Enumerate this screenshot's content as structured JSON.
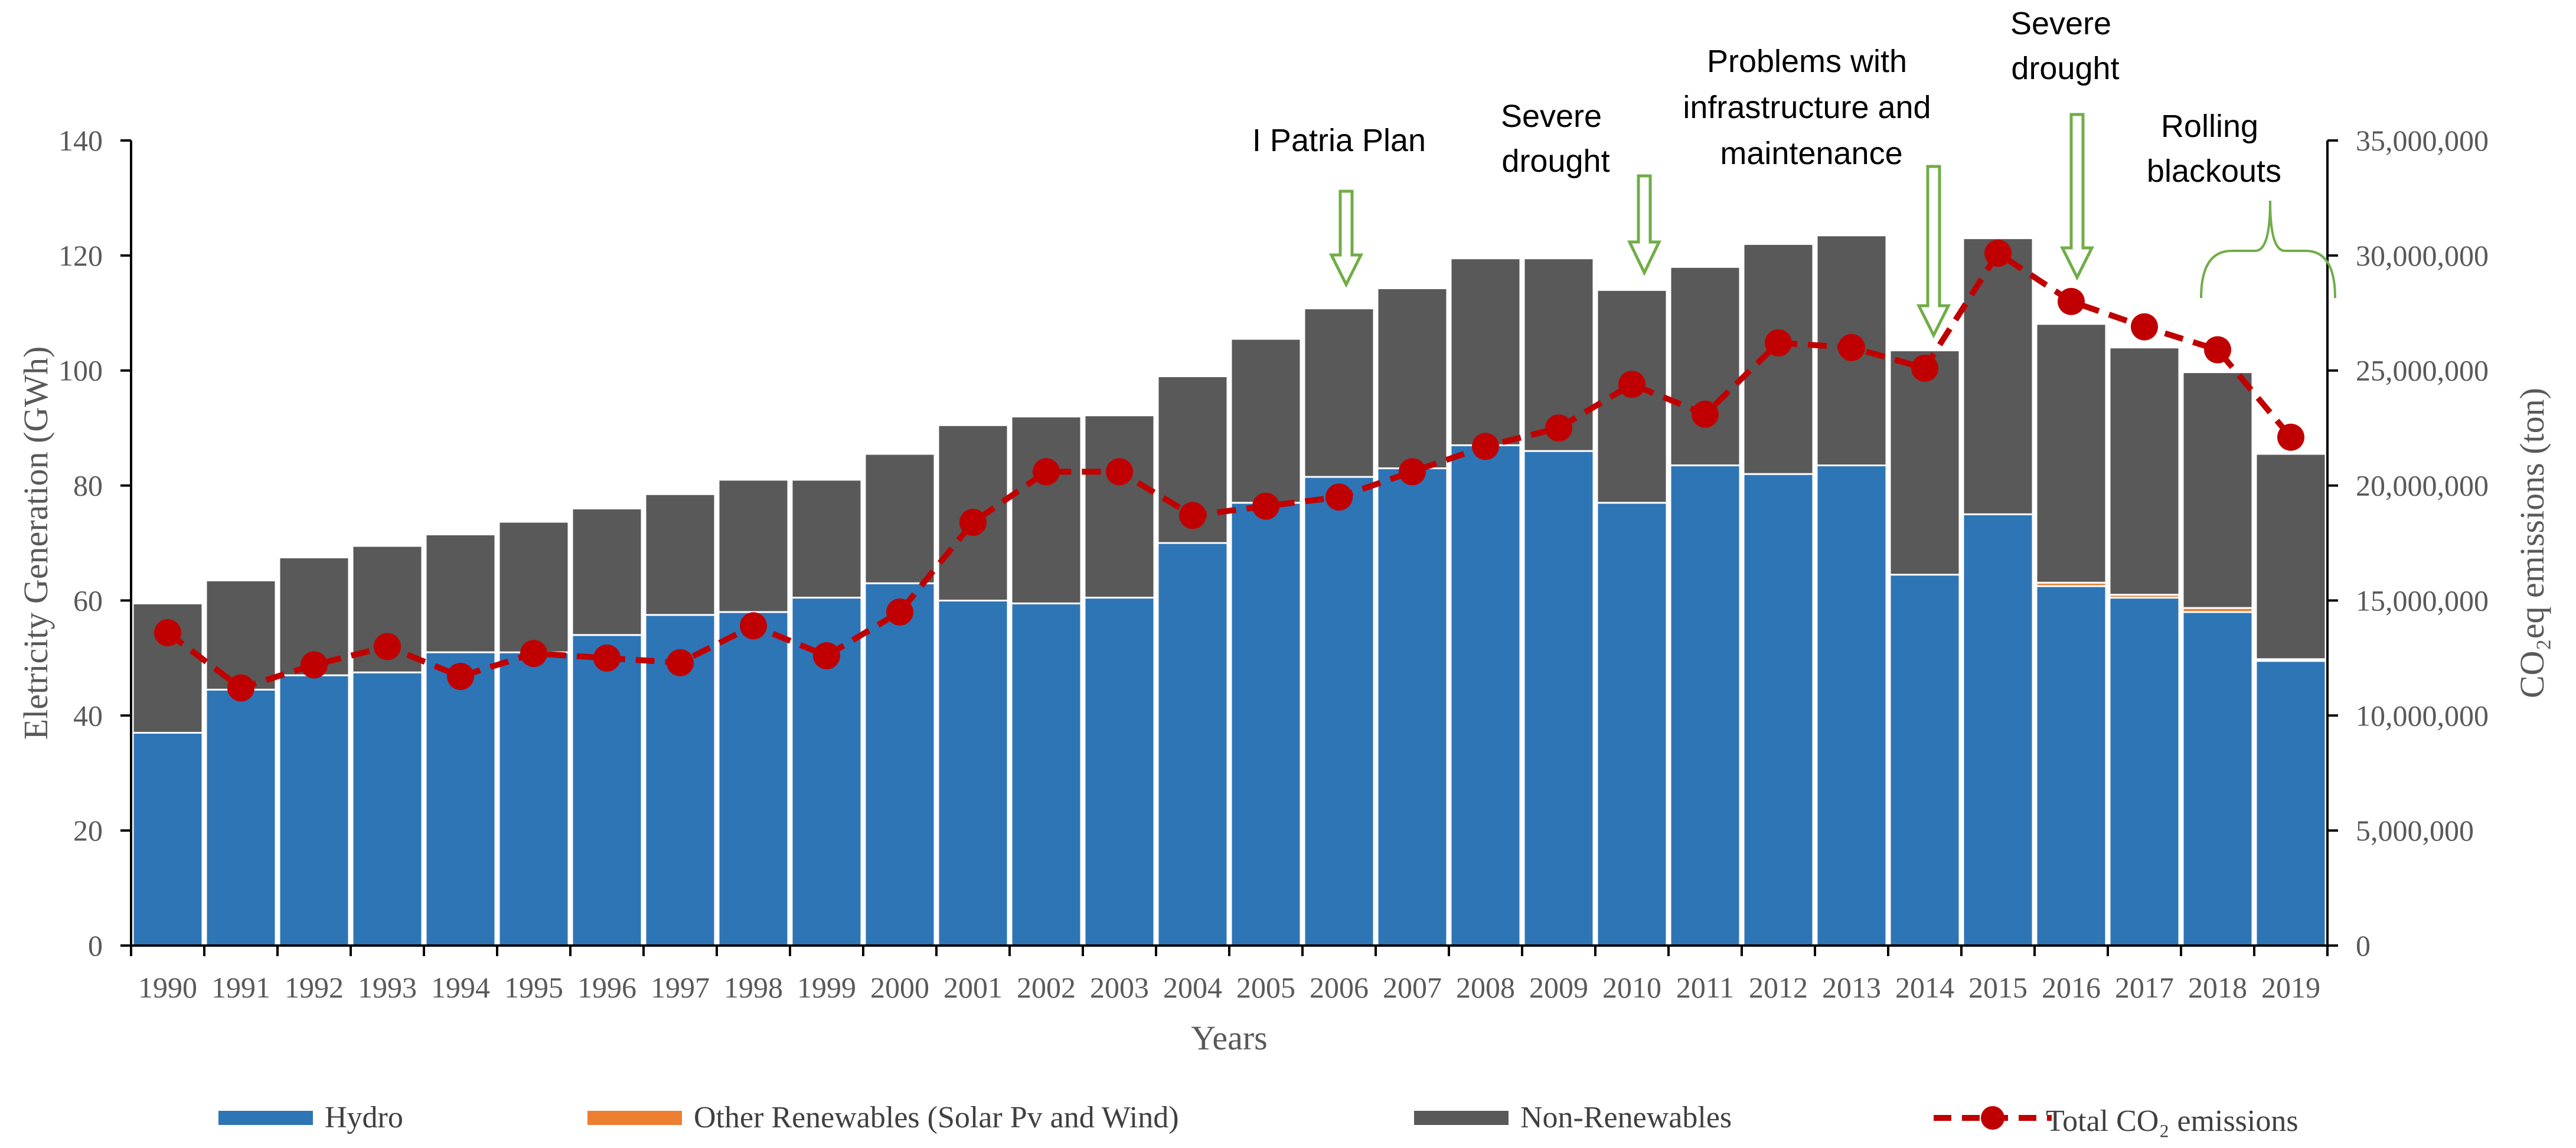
{
  "chart_data": {
    "type": "bar",
    "stacked": true,
    "categories": [
      "1990",
      "1991",
      "1992",
      "1993",
      "1994",
      "1995",
      "1996",
      "1997",
      "1998",
      "1999",
      "2000",
      "2001",
      "2002",
      "2003",
      "2004",
      "2005",
      "2006",
      "2007",
      "2008",
      "2009",
      "2010",
      "2011",
      "2012",
      "2013",
      "2014",
      "2015",
      "2016",
      "2017",
      "2018",
      "2019"
    ],
    "xlabel": "Years",
    "ylabel": "Eletricity Generation (GWh)",
    "ylabel_right": "CO₂eq emissions (ton)",
    "ylim": [
      0,
      140
    ],
    "ylim_right": [
      0,
      35000000
    ],
    "yticks": [
      "0",
      "20",
      "40",
      "60",
      "80",
      "100",
      "120",
      "140"
    ],
    "yticks_right": [
      "0",
      "5,000,000",
      "10,000,000",
      "15,000,000",
      "20,000,000",
      "25,000,000",
      "30,000,000",
      "35,000,000"
    ],
    "series": [
      {
        "name": "Hydro",
        "color": "#2E75B6",
        "type": "bar",
        "values": [
          37,
          44.5,
          47,
          47.5,
          51,
          51,
          54,
          57.5,
          58,
          60.5,
          63,
          60,
          59.5,
          60.5,
          70,
          77,
          81.5,
          83,
          87,
          86,
          77,
          83.5,
          82,
          83.5,
          64.5,
          75,
          62.5,
          60.5,
          58,
          49.5
        ]
      },
      {
        "name": "Other Renewables (Solar Pv and Wind)",
        "color": "#ED7D31",
        "type": "bar",
        "values": [
          0,
          0,
          0,
          0,
          0,
          0,
          0,
          0,
          0,
          0,
          0,
          0,
          0,
          0,
          0,
          0,
          0,
          0,
          0,
          0,
          0,
          0,
          0,
          0,
          0,
          0,
          0.6,
          0.5,
          0.7,
          0.3
        ]
      },
      {
        "name": "Non-Renewables",
        "color": "#595959",
        "type": "bar",
        "values": [
          22.5,
          19,
          20.5,
          22,
          20.5,
          22.7,
          22,
          21,
          23,
          20.5,
          22.5,
          30.5,
          32.5,
          31.7,
          29,
          28.5,
          29.3,
          31.3,
          32.5,
          33.5,
          37,
          34.5,
          40,
          40,
          39,
          48,
          45,
          43,
          41,
          35.7
        ]
      },
      {
        "name": "Total CO₂ emissions",
        "color": "#C00000",
        "type": "line",
        "axis": "right",
        "values": [
          13600000,
          11200000,
          12200000,
          13000000,
          11700000,
          12700000,
          12500000,
          12300000,
          13900000,
          12600000,
          14500000,
          18400000,
          20600000,
          20600000,
          18700000,
          19100000,
          19500000,
          20600000,
          21700000,
          22500000,
          24400000,
          23100000,
          26200000,
          26000000,
          25100000,
          30100000,
          28000000,
          26900000,
          25900000,
          22100000
        ]
      }
    ],
    "annotations": [
      {
        "text_lines": [
          "I Patria Plan"
        ],
        "year": "2006"
      },
      {
        "text_lines": [
          "Severe",
          "drought"
        ],
        "year": "2010"
      },
      {
        "text_lines": [
          "Problems with",
          "infrastructure and",
          "maintenance"
        ],
        "year": "2014"
      },
      {
        "text_lines": [
          "Severe",
          "drought"
        ],
        "year": "2016"
      },
      {
        "text_lines": [
          "Rolling",
          "blackouts"
        ],
        "year": "2018-2019"
      }
    ],
    "legend_position": "bottom"
  }
}
